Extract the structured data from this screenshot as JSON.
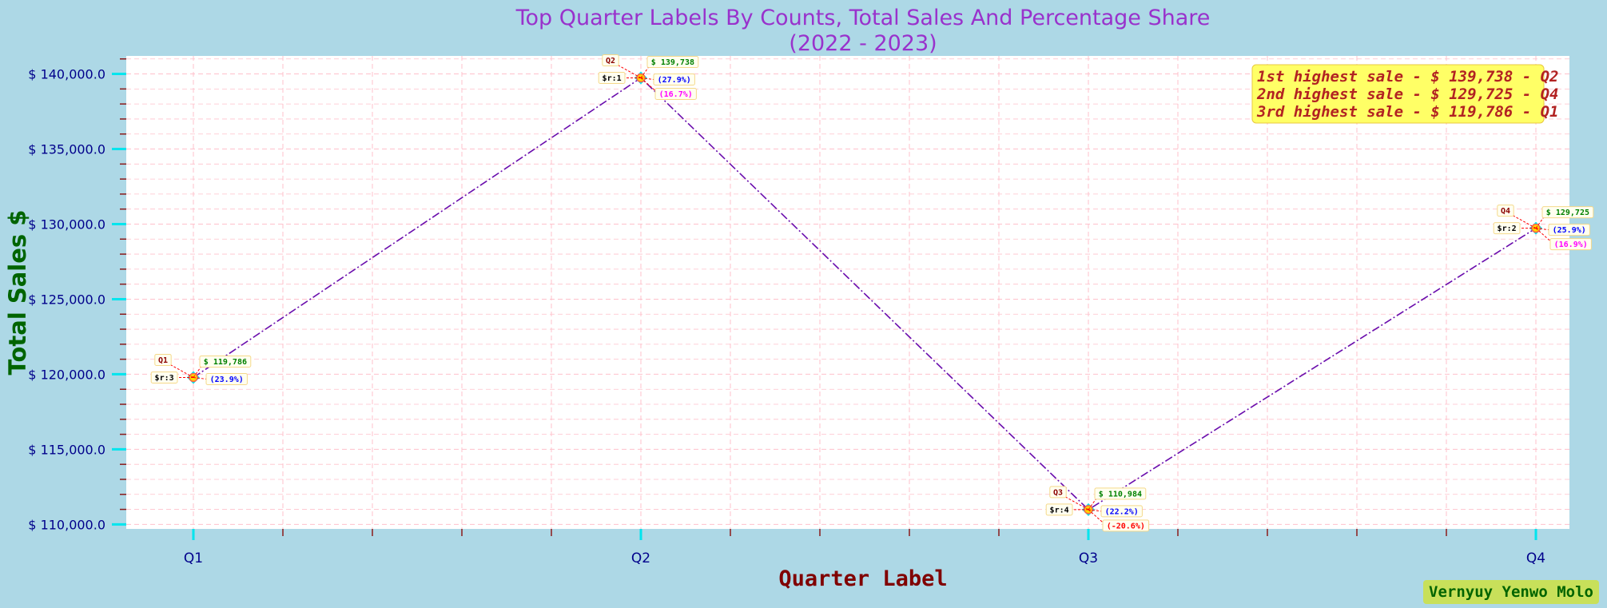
{
  "chart_data": {
    "type": "line",
    "title": "Top Quarter Labels By Counts, Total Sales And Percentage Share",
    "subtitle": "(2022 - 2023)",
    "xlabel": "Quarter Label",
    "ylabel": "Total Sales $",
    "categories": [
      "Q1",
      "Q2",
      "Q3",
      "Q4"
    ],
    "values": [
      119786,
      139738,
      110984,
      129725
    ],
    "ylim": [
      109700,
      141200
    ],
    "yticks": [
      110000,
      115000,
      120000,
      125000,
      130000,
      135000,
      140000
    ],
    "ytick_labels": [
      "$ 110,000.0",
      "$ 115,000.0",
      "$ 120,000.0",
      "$ 125,000.0",
      "$ 130,000.0",
      "$ 135,000.0",
      "$ 140,000.0"
    ],
    "grid": true,
    "annotations": [
      {
        "label": "Q1",
        "value_text": "$ 119,786",
        "rank_text": "$r:3",
        "share_text": "(23.9%)",
        "change_text": ""
      },
      {
        "label": "Q2",
        "value_text": "$ 139,738",
        "rank_text": "$r:1",
        "share_text": "(27.9%)",
        "change_text": "(16.7%)"
      },
      {
        "label": "Q3",
        "value_text": "$ 110,984",
        "rank_text": "$r:4",
        "share_text": "(22.2%)",
        "change_text": "(-20.6%)"
      },
      {
        "label": "Q4",
        "value_text": "$ 129,725",
        "rank_text": "$r:2",
        "share_text": "(25.9%)",
        "change_text": "(16.9%)"
      }
    ],
    "highlights": [
      "1st highest sale - $ 139,738 - Q2",
      "2nd highest sale - $ 129,725 - Q4",
      "3rd highest sale - $ 119,786 - Q1"
    ],
    "credit": "Vernyuy Yenwo Molo",
    "colors": {
      "background": "#add8e6",
      "plot_bg": "#ffffff",
      "title": "#9932cc",
      "line": "#6a0dad",
      "xlabel": "#800000",
      "ylabel": "#006400",
      "tick_label": "#00008b",
      "major_tick": "#00e5ee",
      "minor_tick": "#8b1a1a",
      "grid": "#ffc0cb",
      "highlight_bg": "#ffff66",
      "highlight_text": "#b22222",
      "credit_bg": "#c8e05a",
      "value_text": "#008000",
      "share_text": "#0000ff",
      "change_pos": "#ff00ff",
      "change_neg": "#ff0000",
      "label_text": "#8b0000",
      "rank_text": "#000000",
      "connector": "#ff0000"
    }
  }
}
